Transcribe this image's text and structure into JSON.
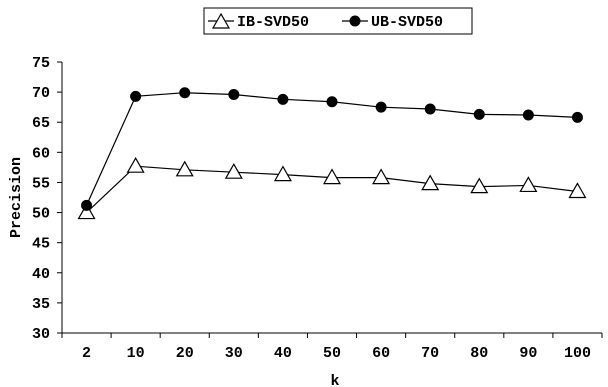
{
  "chart_data": {
    "type": "line",
    "categories": [
      "2",
      "10",
      "20",
      "30",
      "40",
      "50",
      "60",
      "70",
      "80",
      "90",
      "100"
    ],
    "series": [
      {
        "name": "IB-SVD50",
        "marker": "triangle-open",
        "values": [
          50.0,
          57.7,
          57.1,
          56.7,
          56.3,
          55.8,
          55.8,
          54.8,
          54.3,
          54.5,
          53.5
        ]
      },
      {
        "name": "UB-SVD50",
        "marker": "circle-filled",
        "values": [
          51.2,
          69.3,
          69.9,
          69.6,
          68.8,
          68.4,
          67.5,
          67.2,
          66.3,
          66.2,
          65.8
        ]
      }
    ],
    "xlabel": "k",
    "ylabel": "Precision",
    "ylim": [
      30,
      75
    ],
    "yticks": [
      30,
      35,
      40,
      45,
      50,
      55,
      60,
      65,
      70,
      75
    ],
    "grid": false,
    "legend_position": "top"
  }
}
